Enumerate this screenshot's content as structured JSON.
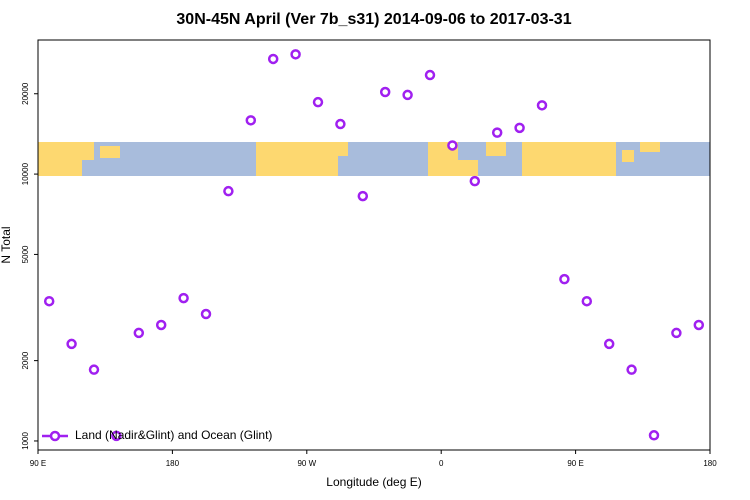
{
  "chart_data": {
    "type": "scatter",
    "title": "30N-45N April (Ver 7b_s31)   2014-09-06 to 2017-03-31",
    "x_label": "Longitude (deg E)",
    "y_label": "N Total",
    "log_y": true,
    "xlim": [
      90,
      540
    ],
    "xticks": [
      {
        "value": 90,
        "label": "90 E"
      },
      {
        "value": 180,
        "label": "180"
      },
      {
        "value": 270,
        "label": "90 W"
      },
      {
        "value": 360,
        "label": "0"
      },
      {
        "value": 450,
        "label": "90 E"
      },
      {
        "value": 540,
        "label": "180"
      }
    ],
    "ylim": [
      925,
      31800
    ],
    "yticks": [
      1000,
      2000,
      5000,
      10000,
      20000
    ],
    "legend_position": "bottom-left",
    "series": [
      {
        "name": "Land (Nadir&Glint) and Ocean (Glint)",
        "color": "#a020f0",
        "x": [
          97.5,
          112.5,
          127.5,
          142.5,
          157.5,
          172.5,
          187.5,
          202.5,
          217.5,
          232.5,
          247.5,
          262.5,
          277.5,
          292.5,
          307.5,
          322.5,
          337.5,
          352.5,
          367.5,
          382.5,
          397.5,
          412.5,
          427.5,
          442.5,
          457.5,
          472.5,
          487.5,
          502.5,
          517.5,
          532.5
        ],
        "values": [
          3340,
          2310,
          1850,
          1045,
          2540,
          2720,
          3430,
          2990,
          8630,
          15900,
          27000,
          28100,
          18600,
          15400,
          8270,
          20300,
          19800,
          23500,
          12800,
          9410,
          14300,
          14900,
          18100,
          4040,
          3340,
          2310,
          1850,
          1050,
          2540,
          2720
        ]
      }
    ]
  }
}
